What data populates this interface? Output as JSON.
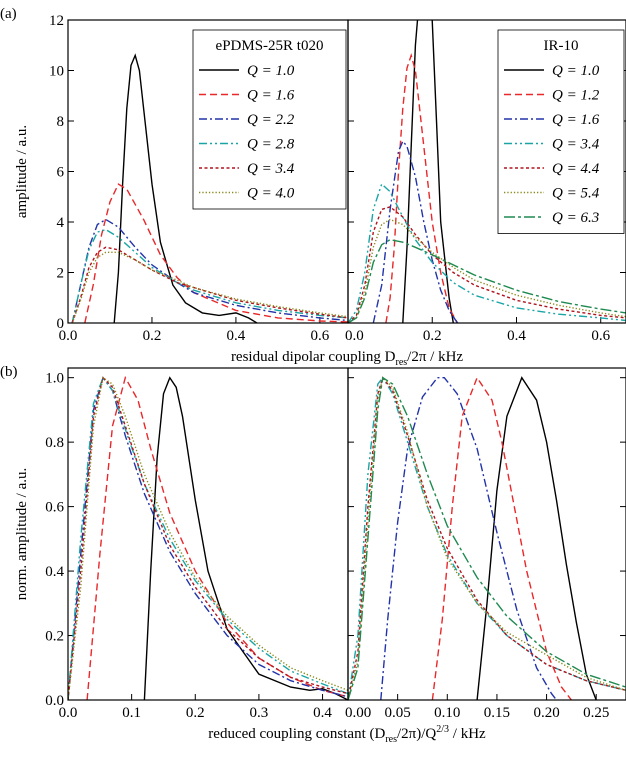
{
  "chart_data": [
    {
      "type": "line",
      "panel_label": "(a)",
      "ylabel": "amplitude  /  a.u.",
      "xlabel": [
        "residual dipolar coupling D",
        "res",
        "/2π  /  kHz"
      ],
      "legend_title": "ePDMS-25R t020",
      "xlim": [
        0,
        0.667
      ],
      "ylim": [
        0,
        12
      ],
      "xticks": [
        {
          "value": 0,
          "label": "0.0"
        },
        {
          "value": 0.2,
          "label": "0.2"
        },
        {
          "value": 0.4,
          "label": "0.4"
        },
        {
          "value": 0.6,
          "label": "0.6"
        }
      ],
      "yticks": [
        0,
        2,
        4,
        6,
        8,
        10,
        12
      ],
      "series": [
        {
          "name": "Q = 1.0",
          "color": "#000000",
          "linestyle": "solid",
          "x": [
            0.11,
            0.12,
            0.13,
            0.14,
            0.15,
            0.16,
            0.17,
            0.18,
            0.2,
            0.22,
            0.25,
            0.28,
            0.32,
            0.36,
            0.4,
            0.43,
            0.45
          ],
          "values": [
            0,
            2,
            5.5,
            8.5,
            10.2,
            10.6,
            10,
            8.5,
            5.5,
            3.2,
            1.5,
            0.8,
            0.4,
            0.3,
            0.4,
            0.2,
            0
          ]
        },
        {
          "name": "Q = 1.6",
          "color": "#e8282a",
          "linestyle": "dashed",
          "x": [
            0.04,
            0.06,
            0.08,
            0.1,
            0.12,
            0.14,
            0.18,
            0.22,
            0.26,
            0.3,
            0.4,
            0.5,
            0.6,
            0.667
          ],
          "values": [
            0,
            1.5,
            3.5,
            4.8,
            5.5,
            5.3,
            4.1,
            2.7,
            1.8,
            1.2,
            0.5,
            0.2,
            0.08,
            0.04
          ]
        },
        {
          "name": "Q = 2.2",
          "color": "#2233aa",
          "linestyle": "dashdot",
          "x": [
            0.01,
            0.03,
            0.05,
            0.07,
            0.09,
            0.12,
            0.16,
            0.2,
            0.26,
            0.3,
            0.4,
            0.5,
            0.6,
            0.667
          ],
          "values": [
            0,
            1.5,
            3,
            3.9,
            4.1,
            3.8,
            3.0,
            2.3,
            1.6,
            1.2,
            0.7,
            0.4,
            0.2,
            0.1
          ]
        },
        {
          "name": "Q = 2.8",
          "color": "#1aa5a5",
          "linestyle": "dashdotdot",
          "x": [
            0.01,
            0.03,
            0.05,
            0.07,
            0.09,
            0.12,
            0.16,
            0.2,
            0.26,
            0.3,
            0.4,
            0.5,
            0.6,
            0.667
          ],
          "values": [
            0,
            1.5,
            2.9,
            3.6,
            3.7,
            3.4,
            2.8,
            2.2,
            1.6,
            1.3,
            0.8,
            0.5,
            0.3,
            0.2
          ]
        },
        {
          "name": "Q = 3.4",
          "color": "#b0141e",
          "linestyle": "shortdash",
          "x": [
            0.01,
            0.03,
            0.05,
            0.07,
            0.09,
            0.12,
            0.16,
            0.2,
            0.26,
            0.3,
            0.4,
            0.5,
            0.6,
            0.667
          ],
          "values": [
            0,
            1,
            2.2,
            2.8,
            3.0,
            2.9,
            2.5,
            2.1,
            1.6,
            1.4,
            0.9,
            0.6,
            0.35,
            0.2
          ]
        },
        {
          "name": "Q = 4.0",
          "color": "#8a8a1e",
          "linestyle": "dotted",
          "x": [
            0.01,
            0.03,
            0.05,
            0.07,
            0.09,
            0.12,
            0.16,
            0.2,
            0.26,
            0.3,
            0.4,
            0.5,
            0.6,
            0.667
          ],
          "values": [
            0,
            0.9,
            2,
            2.6,
            2.8,
            2.8,
            2.5,
            2.1,
            1.7,
            1.4,
            0.95,
            0.65,
            0.4,
            0.25
          ]
        }
      ]
    },
    {
      "type": "line",
      "legend_title": "IR-10",
      "xlim": [
        0,
        0.66
      ],
      "ylim": [
        0,
        12
      ],
      "xticks": [
        {
          "value": 0,
          "label": "0.0"
        },
        {
          "value": 0.2,
          "label": "0.2"
        },
        {
          "value": 0.4,
          "label": "0.4"
        },
        {
          "value": 0.6,
          "label": "0.6"
        }
      ],
      "yticks": [
        0,
        2,
        4,
        6,
        8,
        10,
        12
      ],
      "series": [
        {
          "name": "Q = 1.0",
          "color": "#000000",
          "linestyle": "solid",
          "x": [
            0.13,
            0.14,
            0.15,
            0.16,
            0.17,
            0.18,
            0.19,
            0.2,
            0.21,
            0.22,
            0.24,
            0.25
          ],
          "values": [
            0,
            3,
            7,
            11,
            13,
            14,
            13.5,
            12,
            8,
            4,
            1,
            0
          ]
        },
        {
          "name": "Q = 1.2",
          "color": "#e8282a",
          "linestyle": "dashed",
          "x": [
            0.09,
            0.1,
            0.11,
            0.12,
            0.13,
            0.14,
            0.15,
            0.16,
            0.18,
            0.2,
            0.22,
            0.24,
            0.26
          ],
          "values": [
            0,
            1,
            3,
            6,
            8.5,
            10.1,
            10.6,
            10,
            7,
            4,
            2,
            0.6,
            0
          ]
        },
        {
          "name": "Q = 1.6",
          "color": "#2233aa",
          "linestyle": "dashdot",
          "x": [
            0.06,
            0.08,
            0.1,
            0.12,
            0.13,
            0.14,
            0.16,
            0.18,
            0.2,
            0.22,
            0.24,
            0.26
          ],
          "values": [
            0,
            1.5,
            4.5,
            6.8,
            7.2,
            7,
            5.8,
            4,
            2.5,
            1.3,
            0.5,
            0
          ]
        },
        {
          "name": "Q = 3.4",
          "color": "#1aa5a5",
          "linestyle": "dashdotdot",
          "x": [
            0,
            0.02,
            0.04,
            0.06,
            0.08,
            0.1,
            0.13,
            0.16,
            0.2,
            0.25,
            0.3,
            0.4,
            0.5,
            0.6,
            0.66
          ],
          "values": [
            0,
            0.5,
            2,
            4.5,
            5.5,
            5.2,
            4.2,
            3.3,
            2.4,
            1.6,
            1.1,
            0.6,
            0.35,
            0.2,
            0.1
          ]
        },
        {
          "name": "Q = 4.4",
          "color": "#b0141e",
          "linestyle": "shortdash",
          "x": [
            0,
            0.02,
            0.04,
            0.06,
            0.08,
            0.1,
            0.13,
            0.16,
            0.2,
            0.25,
            0.3,
            0.4,
            0.5,
            0.6,
            0.66
          ],
          "values": [
            0,
            0.3,
            1.5,
            3.6,
            4.5,
            4.6,
            4.2,
            3.5,
            2.7,
            2.0,
            1.5,
            0.9,
            0.55,
            0.3,
            0.2
          ]
        },
        {
          "name": "Q = 5.4",
          "color": "#8a8a1e",
          "linestyle": "dotted",
          "x": [
            0,
            0.02,
            0.04,
            0.06,
            0.08,
            0.1,
            0.13,
            0.16,
            0.2,
            0.25,
            0.3,
            0.4,
            0.5,
            0.6,
            0.66
          ],
          "values": [
            0,
            0.2,
            1.2,
            3,
            3.9,
            4.1,
            3.9,
            3.4,
            2.8,
            2.2,
            1.7,
            1.1,
            0.7,
            0.4,
            0.25
          ]
        },
        {
          "name": "Q = 6.3",
          "color": "#1f8a50",
          "linestyle": "longdashdot",
          "x": [
            0,
            0.02,
            0.04,
            0.06,
            0.08,
            0.1,
            0.13,
            0.16,
            0.2,
            0.25,
            0.3,
            0.4,
            0.5,
            0.6,
            0.66
          ],
          "values": [
            0,
            0.2,
            1,
            2.4,
            3.1,
            3.3,
            3.2,
            3.0,
            2.7,
            2.3,
            1.9,
            1.3,
            0.85,
            0.55,
            0.4
          ]
        }
      ]
    },
    {
      "type": "line",
      "panel_label": "(b)",
      "ylabel": "norm. amplitude  /  a.u.",
      "xlabel": [
        "reduced coupling constant (D",
        "res",
        "/2π)/Q",
        "2/3",
        "  /  kHz"
      ],
      "xlim": [
        0,
        0.44
      ],
      "ylim": [
        0,
        1.03
      ],
      "xticks": [
        {
          "value": 0,
          "label": "0.0"
        },
        {
          "value": 0.1,
          "label": "0.1"
        },
        {
          "value": 0.2,
          "label": "0.2"
        },
        {
          "value": 0.3,
          "label": "0.3"
        },
        {
          "value": 0.4,
          "label": "0.4"
        }
      ],
      "yticks": [
        {
          "value": 0,
          "label": "0.0"
        },
        0.2,
        0.4,
        0.6,
        0.8,
        {
          "value": 1,
          "label": "1.0"
        }
      ],
      "series": [
        {
          "color": "#000000",
          "linestyle": "solid",
          "x": [
            0.12,
            0.13,
            0.14,
            0.15,
            0.16,
            0.17,
            0.18,
            0.2,
            0.22,
            0.25,
            0.3,
            0.35,
            0.38,
            0.4,
            0.42,
            0.44
          ],
          "values": [
            0,
            0.4,
            0.75,
            0.95,
            1.0,
            0.97,
            0.88,
            0.62,
            0.4,
            0.22,
            0.08,
            0.04,
            0.03,
            0.035,
            0.02,
            0
          ]
        },
        {
          "color": "#e8282a",
          "linestyle": "dashed",
          "x": [
            0.03,
            0.05,
            0.07,
            0.09,
            0.11,
            0.13,
            0.16,
            0.2,
            0.25,
            0.3,
            0.35,
            0.4,
            0.44
          ],
          "values": [
            0,
            0.45,
            0.85,
            1.0,
            0.93,
            0.78,
            0.58,
            0.4,
            0.24,
            0.13,
            0.07,
            0.03,
            0.01
          ]
        },
        {
          "color": "#2233aa",
          "linestyle": "dashdot",
          "x": [
            0,
            0.02,
            0.04,
            0.055,
            0.07,
            0.09,
            0.12,
            0.16,
            0.2,
            0.25,
            0.3,
            0.35,
            0.4,
            0.44
          ],
          "values": [
            0,
            0.45,
            0.9,
            1.0,
            0.96,
            0.82,
            0.64,
            0.46,
            0.33,
            0.2,
            0.11,
            0.06,
            0.03,
            0.01
          ]
        },
        {
          "color": "#1aa5a5",
          "linestyle": "dashdotdot",
          "x": [
            0,
            0.02,
            0.04,
            0.055,
            0.07,
            0.09,
            0.12,
            0.16,
            0.2,
            0.25,
            0.3,
            0.35,
            0.4,
            0.44
          ],
          "values": [
            0,
            0.5,
            0.92,
            1.0,
            0.96,
            0.84,
            0.67,
            0.5,
            0.37,
            0.25,
            0.16,
            0.09,
            0.05,
            0.02
          ]
        },
        {
          "color": "#b0141e",
          "linestyle": "shortdash",
          "x": [
            0,
            0.02,
            0.04,
            0.055,
            0.07,
            0.09,
            0.12,
            0.16,
            0.2,
            0.25,
            0.3,
            0.35,
            0.4,
            0.44
          ],
          "values": [
            0,
            0.4,
            0.88,
            1.0,
            0.97,
            0.85,
            0.67,
            0.48,
            0.35,
            0.22,
            0.13,
            0.07,
            0.04,
            0.02
          ]
        },
        {
          "color": "#8a8a1e",
          "linestyle": "dotted",
          "x": [
            0,
            0.02,
            0.04,
            0.055,
            0.07,
            0.09,
            0.12,
            0.16,
            0.2,
            0.25,
            0.3,
            0.35,
            0.4,
            0.44
          ],
          "values": [
            0,
            0.35,
            0.85,
            1.0,
            0.98,
            0.88,
            0.7,
            0.52,
            0.38,
            0.26,
            0.17,
            0.1,
            0.06,
            0.03
          ]
        }
      ]
    },
    {
      "type": "line",
      "xlim": [
        0,
        0.28
      ],
      "ylim": [
        0,
        1.03
      ],
      "xticks": [
        {
          "value": 0,
          "label": "0.00"
        },
        {
          "value": 0.05,
          "label": "0.05"
        },
        {
          "value": 0.1,
          "label": "0.10"
        },
        {
          "value": 0.15,
          "label": "0.15"
        },
        {
          "value": 0.2,
          "label": "0.20"
        },
        {
          "value": 0.25,
          "label": "0.25"
        }
      ],
      "yticks": [
        0,
        0.2,
        0.4,
        0.6,
        0.8,
        1
      ],
      "series": [
        {
          "color": "#000000",
          "linestyle": "solid",
          "x": [
            0.13,
            0.14,
            0.15,
            0.16,
            0.175,
            0.19,
            0.2,
            0.21,
            0.22,
            0.23,
            0.24,
            0.25
          ],
          "values": [
            0,
            0.3,
            0.65,
            0.88,
            1.0,
            0.93,
            0.8,
            0.62,
            0.42,
            0.24,
            0.08,
            0
          ]
        },
        {
          "color": "#e8282a",
          "linestyle": "dashed",
          "x": [
            0.085,
            0.095,
            0.105,
            0.115,
            0.13,
            0.145,
            0.155,
            0.165,
            0.18,
            0.2,
            0.215,
            0.225
          ],
          "values": [
            0,
            0.25,
            0.6,
            0.88,
            1.0,
            0.93,
            0.8,
            0.64,
            0.4,
            0.15,
            0.04,
            0
          ]
        },
        {
          "color": "#2233aa",
          "linestyle": "dashdot",
          "x": [
            0.033,
            0.04,
            0.05,
            0.06,
            0.075,
            0.09,
            0.097,
            0.11,
            0.13,
            0.15,
            0.17,
            0.19,
            0.205,
            0.21
          ],
          "values": [
            0,
            0.25,
            0.55,
            0.78,
            0.94,
            1.0,
            1.0,
            0.95,
            0.78,
            0.52,
            0.28,
            0.1,
            0.02,
            0
          ]
        },
        {
          "color": "#1aa5a5",
          "linestyle": "dashdotdot",
          "x": [
            0,
            0.01,
            0.02,
            0.03,
            0.035,
            0.045,
            0.06,
            0.08,
            0.1,
            0.13,
            0.16,
            0.2,
            0.24,
            0.28
          ],
          "values": [
            0,
            0.2,
            0.7,
            0.98,
            1.0,
            0.95,
            0.8,
            0.6,
            0.45,
            0.3,
            0.2,
            0.11,
            0.06,
            0.03
          ]
        },
        {
          "color": "#b0141e",
          "linestyle": "shortdash",
          "x": [
            0,
            0.01,
            0.02,
            0.03,
            0.035,
            0.045,
            0.06,
            0.08,
            0.1,
            0.13,
            0.16,
            0.2,
            0.24,
            0.28
          ],
          "values": [
            0,
            0.15,
            0.6,
            0.95,
            1.0,
            0.96,
            0.82,
            0.62,
            0.47,
            0.31,
            0.2,
            0.11,
            0.06,
            0.03
          ]
        },
        {
          "color": "#8a8a1e",
          "linestyle": "dotted",
          "x": [
            0,
            0.01,
            0.02,
            0.03,
            0.035,
            0.045,
            0.06,
            0.08,
            0.1,
            0.13,
            0.16,
            0.2,
            0.24,
            0.28
          ],
          "values": [
            0,
            0.12,
            0.55,
            0.93,
            1.0,
            0.97,
            0.83,
            0.6,
            0.44,
            0.3,
            0.21,
            0.14,
            0.07,
            0.03
          ]
        },
        {
          "color": "#1f8a50",
          "linestyle": "longdashdot",
          "x": [
            0,
            0.01,
            0.02,
            0.03,
            0.035,
            0.045,
            0.06,
            0.08,
            0.1,
            0.13,
            0.16,
            0.2,
            0.24,
            0.28
          ],
          "values": [
            0,
            0.1,
            0.5,
            0.9,
            1.0,
            0.98,
            0.88,
            0.7,
            0.54,
            0.38,
            0.26,
            0.15,
            0.08,
            0.04
          ]
        }
      ]
    }
  ]
}
